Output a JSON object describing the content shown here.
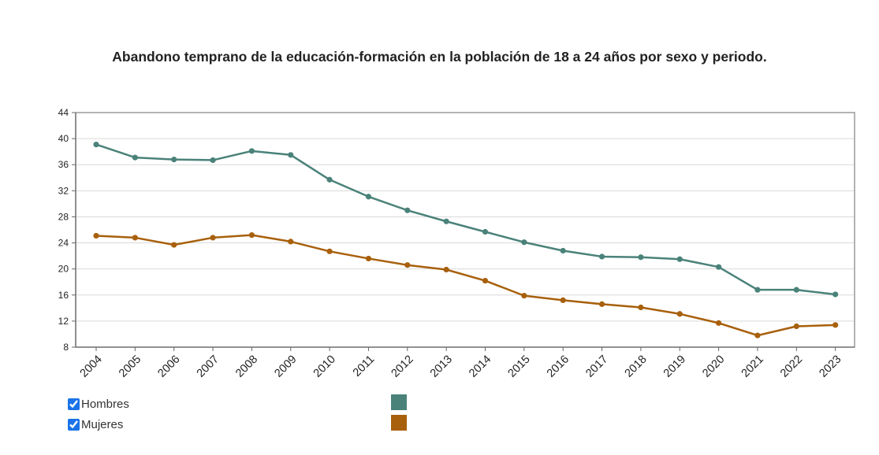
{
  "chart_data": {
    "type": "line",
    "title": "Abandono temprano de la educación-formación en la población de 18 a 24 años por sexo y periodo.",
    "x": [
      "2004",
      "2005",
      "2006",
      "2007",
      "2008",
      "2009",
      "2010",
      "2011",
      "2012",
      "2013",
      "2014",
      "2015",
      "2016",
      "2017",
      "2018",
      "2019",
      "2020",
      "2021",
      "2022",
      "2023"
    ],
    "yticks": [
      "8",
      "12",
      "16",
      "20",
      "24",
      "28",
      "32",
      "36",
      "40",
      "44"
    ],
    "ylim": [
      8,
      44
    ],
    "grid": true,
    "legend_position": "bottom-left",
    "series": [
      {
        "name": "Hombres",
        "color": "#4a8279",
        "values": [
          39.1,
          37.1,
          36.8,
          36.7,
          38.1,
          37.5,
          33.7,
          31.1,
          29.0,
          27.3,
          25.7,
          24.1,
          22.8,
          21.9,
          21.8,
          21.5,
          20.3,
          16.8,
          16.8,
          16.1
        ]
      },
      {
        "name": "Mujeres",
        "color": "#a8600c",
        "values": [
          25.1,
          24.8,
          23.7,
          24.8,
          25.2,
          24.2,
          22.7,
          21.6,
          20.6,
          19.9,
          18.2,
          15.9,
          15.2,
          14.6,
          14.1,
          13.1,
          11.7,
          9.8,
          11.2,
          11.4
        ]
      }
    ]
  },
  "legend": {
    "hombres_label": "Hombres",
    "mujeres_label": "Mujeres",
    "hombres_checked": true,
    "mujeres_checked": true
  }
}
